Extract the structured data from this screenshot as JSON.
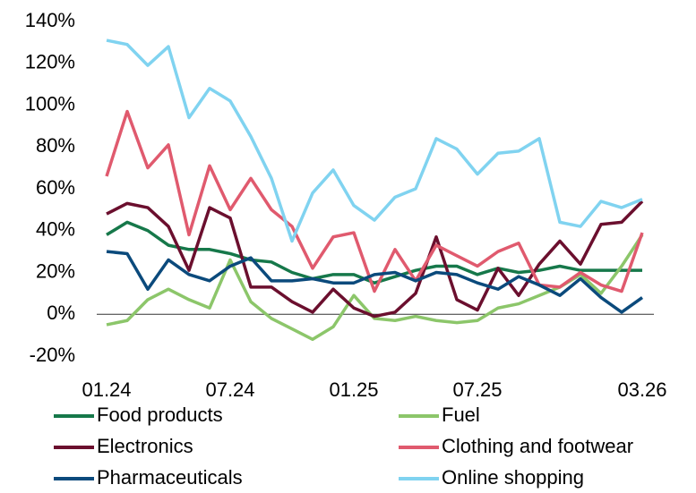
{
  "chart_data": {
    "type": "line",
    "categories": [
      "01.24",
      null,
      null,
      null,
      null,
      null,
      "07.24",
      null,
      null,
      null,
      null,
      null,
      "01.25",
      null,
      null,
      null,
      null,
      null,
      "07.25",
      null,
      null,
      null,
      null,
      null,
      null,
      null,
      "03.26"
    ],
    "ylim": [
      -20,
      140
    ],
    "yticks": [
      {
        "value": -20,
        "label": "-20%"
      },
      {
        "value": 0,
        "label": "0%"
      },
      {
        "value": 20,
        "label": "20%"
      },
      {
        "value": 40,
        "label": "40%"
      },
      {
        "value": 60,
        "label": "60%"
      },
      {
        "value": 80,
        "label": "80%"
      },
      {
        "value": 100,
        "label": "100%"
      },
      {
        "value": 120,
        "label": "120%"
      },
      {
        "value": 140,
        "label": "140%"
      }
    ],
    "series": [
      {
        "name": "Food products",
        "color": "#16784a",
        "values": [
          38,
          44,
          40,
          33,
          31,
          31,
          29,
          26,
          25,
          20,
          17,
          19,
          19,
          15,
          18,
          21,
          23,
          23,
          19,
          22,
          20,
          21,
          23,
          21,
          21,
          21,
          21
        ]
      },
      {
        "name": "Fuel",
        "color": "#8cc66a",
        "values": [
          -5,
          -3,
          7,
          12,
          7,
          3,
          26,
          6,
          -2,
          -7,
          -12,
          -6,
          9,
          -2,
          -3,
          -1,
          -3,
          -4,
          -3,
          3,
          5,
          9,
          13,
          19,
          10,
          23,
          38
        ]
      },
      {
        "name": "Electronics",
        "color": "#6b0f2e",
        "values": [
          48,
          53,
          51,
          42,
          21,
          51,
          46,
          13,
          13,
          6,
          1,
          12,
          3,
          -1,
          1,
          10,
          37,
          7,
          2,
          22,
          9,
          24,
          35,
          24,
          43,
          44,
          54
        ]
      },
      {
        "name": "Clothing and footwear",
        "color": "#e05a6e",
        "values": [
          66,
          97,
          70,
          81,
          38,
          71,
          50,
          65,
          50,
          42,
          22,
          37,
          39,
          11,
          31,
          16,
          33,
          28,
          23,
          30,
          34,
          14,
          13,
          20,
          14,
          11,
          39
        ]
      },
      {
        "name": "Pharmaceuticals",
        "color": "#0b4a7c",
        "values": [
          30,
          29,
          12,
          26,
          19,
          16,
          23,
          27,
          16,
          16,
          17,
          15,
          15,
          19,
          20,
          16,
          20,
          19,
          15,
          12,
          18,
          14,
          9,
          17,
          8,
          1,
          8
        ]
      },
      {
        "name": "Online shopping",
        "color": "#80d3f0",
        "values": [
          131,
          129,
          119,
          128,
          94,
          108,
          102,
          85,
          65,
          35,
          58,
          69,
          52,
          45,
          56,
          60,
          84,
          79,
          67,
          77,
          78,
          84,
          44,
          42,
          54,
          51,
          55
        ]
      }
    ]
  }
}
